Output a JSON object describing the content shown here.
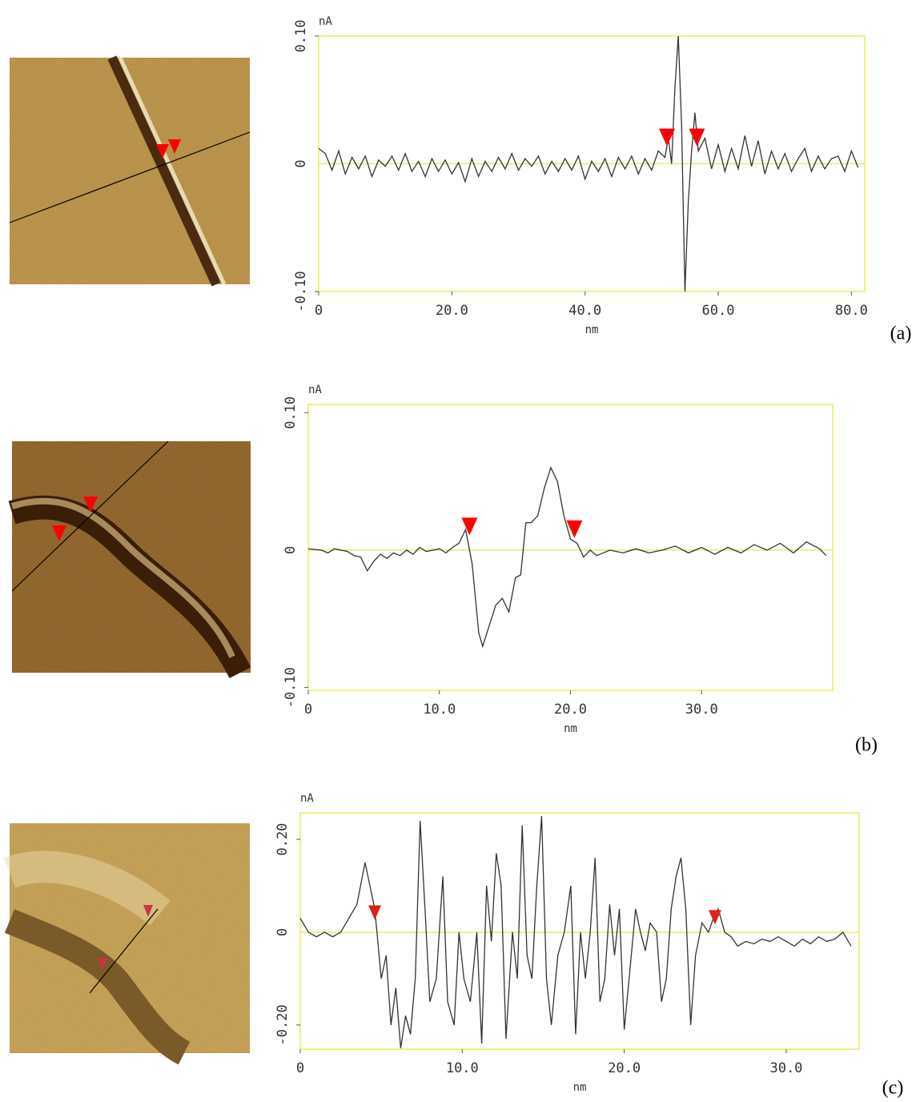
{
  "chart_data": [
    {
      "type": "line",
      "panel_label": "(a)",
      "y_label": "nA",
      "x_label": "nm",
      "xlim": [
        0,
        82
      ],
      "ylim": [
        -0.1,
        0.1
      ],
      "xticks": [
        0,
        {
          "value": 20,
          "label": "20.0"
        },
        {
          "value": 40,
          "label": "40.0"
        },
        {
          "value": 60,
          "label": "60.0"
        },
        {
          "value": 80,
          "label": "80.0"
        }
      ],
      "yticks": [
        {
          "value": -0.1,
          "label": "-0.10"
        },
        0,
        {
          "value": 0.1,
          "label": "0.10"
        }
      ],
      "color": "#333333",
      "x": [
        0,
        1,
        2,
        3,
        4,
        5,
        6,
        7,
        8,
        9,
        10,
        11,
        12,
        13,
        14,
        15,
        16,
        17,
        18,
        19,
        20,
        21,
        22,
        23,
        24,
        25,
        26,
        27,
        28,
        29,
        30,
        31,
        32,
        33,
        34,
        35,
        36,
        37,
        38,
        39,
        40,
        41,
        42,
        43,
        44,
        45,
        46,
        47,
        48,
        49,
        50,
        51,
        52,
        52.5,
        53,
        53.5,
        54,
        54.5,
        55,
        55.5,
        56,
        56.5,
        57,
        58,
        59,
        60,
        61,
        62,
        63,
        64,
        65,
        66,
        67,
        68,
        69,
        70,
        71,
        72,
        73,
        74,
        75,
        76,
        77,
        78,
        79,
        80,
        81
      ],
      "values": [
        0.012,
        0.008,
        -0.005,
        0.01,
        -0.008,
        0.005,
        -0.004,
        0.006,
        -0.01,
        0.003,
        -0.002,
        0.006,
        -0.005,
        0.008,
        -0.006,
        0.002,
        -0.01,
        0.004,
        -0.006,
        0.003,
        -0.008,
        0.001,
        -0.014,
        0.004,
        -0.01,
        0.002,
        -0.006,
        0.005,
        -0.004,
        0.008,
        -0.005,
        0.004,
        -0.002,
        0.006,
        -0.008,
        0.002,
        -0.006,
        0.004,
        -0.005,
        0.006,
        -0.012,
        0.002,
        -0.006,
        0.004,
        -0.01,
        0.005,
        -0.004,
        0.006,
        -0.008,
        0.004,
        -0.005,
        0.01,
        0.005,
        0.02,
        0.0,
        0.06,
        0.1,
        0.03,
        -0.1,
        -0.03,
        0.01,
        0.04,
        0.01,
        0.02,
        -0.004,
        0.015,
        -0.006,
        0.012,
        -0.004,
        0.022,
        -0.002,
        0.018,
        -0.008,
        0.01,
        -0.004,
        0.008,
        -0.006,
        0.004,
        0.012,
        -0.006,
        0.006,
        -0.004,
        0.004,
        0.006,
        -0.006,
        0.01,
        -0.003
      ],
      "markers": {
        "color": "#ff0000",
        "x": [
          52.3,
          56.8
        ],
        "y": [
          0.015,
          0.015
        ]
      }
    },
    {
      "type": "line",
      "panel_label": "(b)",
      "y_label": "nA",
      "x_label": "nm",
      "xlim": [
        0,
        40
      ],
      "ylim": [
        -0.102,
        0.106
      ],
      "xticks": [
        0,
        {
          "value": 10,
          "label": "10.0"
        },
        {
          "value": 20,
          "label": "20.0"
        },
        {
          "value": 30,
          "label": "30.0"
        }
      ],
      "yticks": [
        {
          "value": -0.1,
          "label": "-0.10"
        },
        0,
        {
          "value": 0.1,
          "label": "0.10"
        }
      ],
      "color": "#333333",
      "x": [
        0,
        1,
        1.5,
        2,
        3,
        3.5,
        4,
        4.5,
        5,
        5.5,
        6,
        6.5,
        7,
        7.5,
        8,
        8.5,
        9,
        10,
        10.5,
        11,
        11.5,
        12,
        12.5,
        13,
        13.3,
        13.8,
        14.3,
        14.8,
        15.3,
        15.8,
        16.2,
        16.6,
        17,
        17.5,
        18,
        18.5,
        19,
        19.5,
        20,
        20.5,
        21,
        21.5,
        22,
        23,
        24,
        25,
        26,
        27,
        28,
        29,
        30,
        31,
        32,
        33,
        34,
        35,
        36,
        37,
        38,
        39,
        39.5
      ],
      "values": [
        0.001,
        0.0,
        -0.002,
        0.001,
        -0.001,
        -0.004,
        -0.005,
        -0.015,
        -0.008,
        -0.003,
        -0.006,
        -0.002,
        -0.004,
        0.0,
        -0.003,
        0.002,
        -0.001,
        0.001,
        -0.002,
        0.002,
        0.005,
        0.015,
        -0.01,
        -0.06,
        -0.07,
        -0.055,
        -0.04,
        -0.035,
        -0.045,
        -0.02,
        -0.018,
        0.02,
        0.02,
        0.025,
        0.045,
        0.06,
        0.05,
        0.025,
        0.008,
        0.005,
        -0.005,
        0.0,
        -0.004,
        0.0,
        -0.002,
        0.001,
        -0.002,
        0.0,
        0.003,
        -0.002,
        0.002,
        -0.003,
        0.002,
        -0.002,
        0.004,
        0.0,
        0.005,
        -0.002,
        0.006,
        0.001,
        -0.004
      ],
      "markers": {
        "color": "#ff0000",
        "x": [
          12.3,
          20.3
        ],
        "y": [
          0.012,
          0.01
        ]
      }
    },
    {
      "type": "line",
      "panel_label": "(c)",
      "y_label": "nA",
      "x_label": "nm",
      "xlim": [
        0,
        34.5
      ],
      "ylim": [
        -0.252,
        0.257
      ],
      "xticks": [
        0,
        {
          "value": 10,
          "label": "10.0"
        },
        {
          "value": 20,
          "label": "20.0"
        },
        {
          "value": 30,
          "label": "30.0"
        }
      ],
      "yticks": [
        {
          "value": -0.2,
          "label": "-0.20"
        },
        0,
        {
          "value": 0.2,
          "label": "0.20"
        }
      ],
      "color": "#333333",
      "x": [
        0,
        0.5,
        1,
        1.5,
        2,
        2.5,
        3,
        3.5,
        4,
        4.3,
        4.6,
        5,
        5.3,
        5.6,
        5.9,
        6.2,
        6.5,
        6.8,
        7.1,
        7.4,
        7.7,
        8,
        8.4,
        8.8,
        9.1,
        9.5,
        9.8,
        10.1,
        10.5,
        10.9,
        11.2,
        11.5,
        11.8,
        12.1,
        12.4,
        12.7,
        13.1,
        13.4,
        13.7,
        14,
        14.3,
        14.6,
        14.9,
        15.2,
        15.5,
        15.9,
        16.3,
        16.7,
        17,
        17.3,
        17.6,
        17.9,
        18.2,
        18.5,
        18.8,
        19.1,
        19.4,
        19.7,
        20,
        20.3,
        20.7,
        21,
        21.3,
        21.6,
        22,
        22.3,
        22.6,
        22.9,
        23.2,
        23.5,
        23.8,
        24.1,
        24.4,
        24.8,
        25.2,
        25.5,
        25.8,
        26.2,
        26.6,
        27,
        27.5,
        28,
        28.5,
        29,
        29.5,
        30,
        30.5,
        31,
        31.5,
        32,
        32.5,
        33,
        33.5,
        34
      ],
      "values": [
        0.03,
        0.0,
        -0.01,
        0.0,
        -0.01,
        0.0,
        0.03,
        0.06,
        0.15,
        0.1,
        0.05,
        -0.1,
        -0.05,
        -0.2,
        -0.12,
        -0.25,
        -0.18,
        -0.22,
        -0.1,
        0.24,
        0.05,
        -0.15,
        -0.1,
        0.12,
        -0.15,
        -0.2,
        0.0,
        -0.1,
        -0.15,
        0.0,
        -0.24,
        0.1,
        -0.02,
        0.17,
        0.1,
        -0.23,
        0.0,
        -0.1,
        0.23,
        -0.05,
        -0.1,
        0.1,
        0.25,
        -0.1,
        -0.2,
        -0.05,
        0.0,
        0.1,
        -0.22,
        0.0,
        -0.1,
        0.0,
        0.16,
        -0.15,
        -0.1,
        0.06,
        -0.05,
        0.05,
        -0.21,
        -0.1,
        0.05,
        0.0,
        -0.04,
        0.02,
        0.0,
        -0.15,
        -0.1,
        0.05,
        0.12,
        0.16,
        0.05,
        -0.2,
        -0.05,
        0.02,
        0.0,
        0.03,
        0.05,
        0.0,
        -0.01,
        -0.03,
        -0.02,
        -0.025,
        -0.015,
        -0.02,
        -0.01,
        -0.02,
        -0.03,
        -0.015,
        -0.025,
        -0.01,
        -0.02,
        -0.015,
        0.0,
        -0.03
      ],
      "markers": {
        "color": "#dd2222",
        "x": [
          4.6,
          25.6
        ],
        "y": [
          0.03,
          0.02
        ]
      }
    }
  ]
}
